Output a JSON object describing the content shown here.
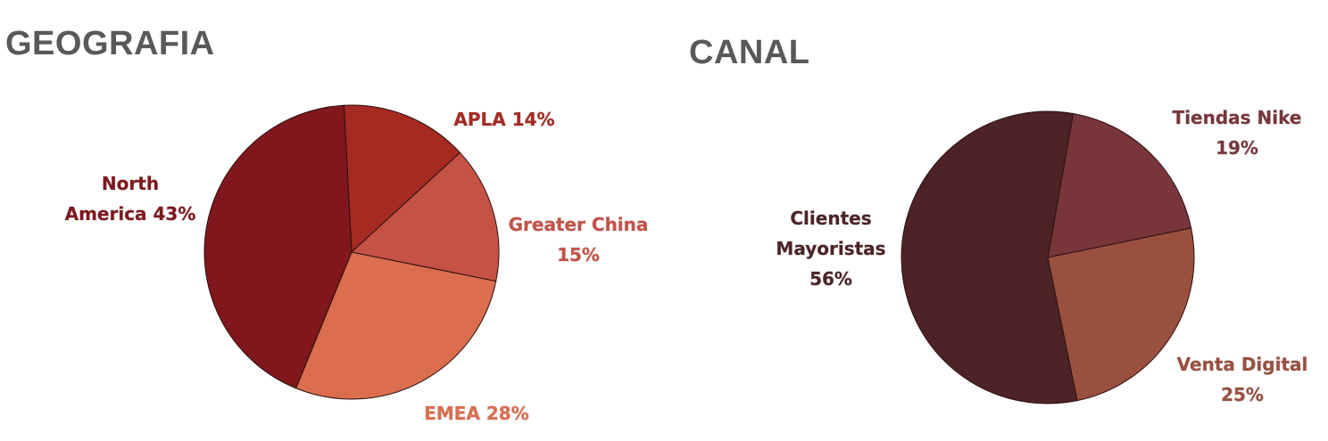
{
  "chart_data": [
    {
      "type": "pie",
      "title": "GEOGRAFIA",
      "slices": [
        {
          "label": [
            "APLA 14%"
          ],
          "value": 14,
          "color": "#A52A22"
        },
        {
          "label": [
            "Greater China",
            "15%"
          ],
          "value": 15,
          "color": "#C65246"
        },
        {
          "label": [
            "EMEA 28%"
          ],
          "value": 28,
          "color": "#DB6E4E"
        },
        {
          "label": [
            "North",
            "America 43%"
          ],
          "value": 43,
          "color": "#7F171C"
        }
      ]
    },
    {
      "type": "pie",
      "title": "CANAL",
      "slices": [
        {
          "label": [
            "Tiendas Nike",
            "19%"
          ],
          "value": 19,
          "color": "#78363A"
        },
        {
          "label": [
            "Venta Digital",
            "25%"
          ],
          "value": 25,
          "color": "#9A503F"
        },
        {
          "label": [
            "Clientes",
            "Mayoristas",
            "56%"
          ],
          "value": 56,
          "color": "#4D2326"
        }
      ]
    }
  ]
}
